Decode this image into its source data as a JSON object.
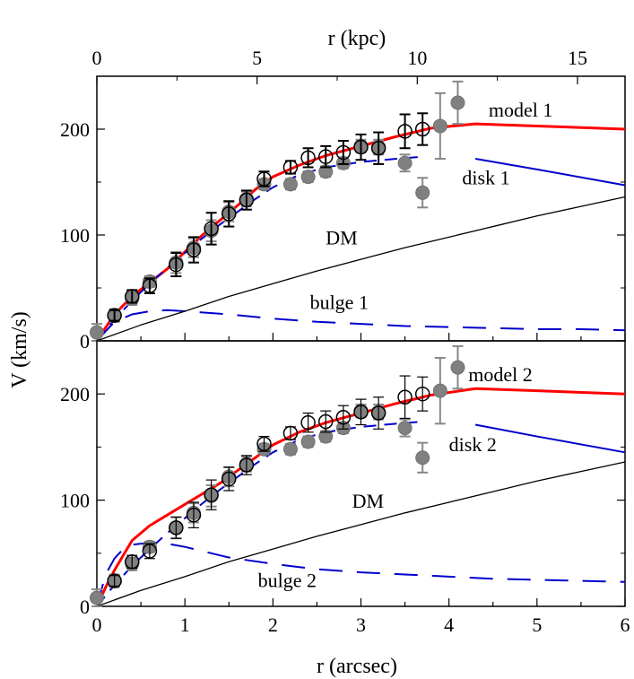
{
  "chart_data": {
    "type": "line",
    "shared": {
      "xlabel": "r (arcsec)",
      "xlabel_top": "r (kpc)",
      "ylabel": "V (km/s)",
      "xlim": [
        0,
        6
      ],
      "ylim": [
        0,
        250
      ],
      "xticks": [
        "0",
        "1",
        "2",
        "3",
        "4",
        "5",
        "6"
      ],
      "yticks": [
        "0",
        "100",
        "200"
      ],
      "top_ticks": [
        {
          "label": "0",
          "arcsec": 0.0
        },
        {
          "label": "5",
          "arcsec": 1.82
        },
        {
          "label": "10",
          "arcsec": 3.64
        },
        {
          "label": "15",
          "arcsec": 5.46
        }
      ]
    },
    "panels": [
      {
        "name": "top",
        "series": [
          {
            "name": "model 1",
            "color": "#ff0000",
            "style": "solid-thick",
            "x": [
              0,
              0.2,
              0.4,
              0.6,
              0.8,
              1.0,
              1.2,
              1.4,
              1.6,
              1.8,
              2.0,
              2.3,
              2.6,
              3.0,
              3.4,
              3.8,
              4.3,
              5.0,
              6.0
            ],
            "y": [
              0,
              25,
              42,
              55,
              68,
              84,
              100,
              114,
              128,
              143,
              155,
              166,
              175,
              184,
              193,
              201,
              205,
              203,
              200
            ]
          },
          {
            "name": "disk 1",
            "color": "#0000cc",
            "style": "dashed",
            "x": [
              0,
              0.2,
              0.4,
              0.6,
              0.8,
              1.0,
              1.2,
              1.4,
              1.6,
              1.8,
              2.0,
              2.3,
              2.6,
              3.0,
              3.4,
              3.7
            ],
            "y": [
              0,
              20,
              38,
              54,
              69,
              83,
              97,
              110,
              122,
              134,
              145,
              157,
              164,
              169,
              172,
              174
            ]
          },
          {
            "name": "disk 1 outer",
            "color": "#0000cc",
            "style": "solid",
            "x": [
              4.3,
              5.0,
              6.0
            ],
            "y": [
              172,
              162,
              147
            ]
          },
          {
            "name": "bulge 1",
            "color": "#0000cc",
            "style": "dashed-long",
            "x": [
              0,
              0.2,
              0.4,
              0.6,
              0.8,
              1.0,
              1.5,
              2.0,
              2.5,
              3.0,
              3.5,
              4.0,
              4.5,
              5.0,
              5.5,
              6.0
            ],
            "y": [
              0,
              18,
              25,
              28,
              29,
              28,
              25,
              21,
              18,
              16,
              14,
              13,
              12,
              11,
              11,
              10
            ]
          },
          {
            "name": "DM",
            "color": "#000000",
            "style": "solid-thin",
            "x": [
              0,
              0.5,
              1.0,
              1.5,
              2.0,
              2.5,
              3.0,
              3.5,
              4.0,
              4.5,
              5.0,
              5.5,
              6.0
            ],
            "y": [
              0,
              15,
              28,
              42,
              54,
              66,
              77,
              88,
              98,
              108,
              118,
              127,
              136
            ]
          }
        ],
        "points_open": [
          {
            "x": 0.2,
            "y": 24,
            "err": 5
          },
          {
            "x": 0.4,
            "y": 42,
            "err": 6
          },
          {
            "x": 0.6,
            "y": 52,
            "err": 7
          },
          {
            "x": 0.9,
            "y": 72,
            "err": 11
          },
          {
            "x": 1.1,
            "y": 86,
            "err": 12
          },
          {
            "x": 1.3,
            "y": 106,
            "err": 15
          },
          {
            "x": 1.5,
            "y": 120,
            "err": 12
          },
          {
            "x": 1.7,
            "y": 133,
            "err": 9
          },
          {
            "x": 1.9,
            "y": 153,
            "err": 7
          },
          {
            "x": 2.2,
            "y": 164,
            "err": 6
          },
          {
            "x": 2.4,
            "y": 173,
            "err": 9
          },
          {
            "x": 2.6,
            "y": 174,
            "err": 10
          },
          {
            "x": 2.8,
            "y": 178,
            "err": 11
          },
          {
            "x": 3.0,
            "y": 183,
            "err": 12
          },
          {
            "x": 3.2,
            "y": 182,
            "err": 15
          },
          {
            "x": 3.5,
            "y": 198,
            "err": 16
          },
          {
            "x": 3.7,
            "y": 200,
            "err": 15
          }
        ],
        "points_filled": [
          {
            "x": 0.0,
            "y": 8,
            "err": 8
          },
          {
            "x": 0.2,
            "y": 24,
            "err": 6
          },
          {
            "x": 0.4,
            "y": 40,
            "err": 6
          },
          {
            "x": 0.6,
            "y": 56,
            "err": 5
          },
          {
            "x": 0.9,
            "y": 74,
            "err": 10
          },
          {
            "x": 1.1,
            "y": 88,
            "err": 9
          },
          {
            "x": 1.3,
            "y": 104,
            "err": 10
          },
          {
            "x": 1.5,
            "y": 122,
            "err": 9
          },
          {
            "x": 1.7,
            "y": 134,
            "err": 7
          },
          {
            "x": 1.9,
            "y": 148,
            "err": 5
          },
          {
            "x": 2.2,
            "y": 148,
            "err": 5
          },
          {
            "x": 2.4,
            "y": 155,
            "err": 5
          },
          {
            "x": 2.6,
            "y": 160,
            "err": 5
          },
          {
            "x": 2.8,
            "y": 168,
            "err": 5
          },
          {
            "x": 3.0,
            "y": 184,
            "err": 6
          },
          {
            "x": 3.2,
            "y": 183,
            "err": 7
          },
          {
            "x": 3.5,
            "y": 168,
            "err": 8
          },
          {
            "x": 3.7,
            "y": 140,
            "err": 14
          },
          {
            "x": 3.9,
            "y": 203,
            "err": 31
          },
          {
            "x": 4.1,
            "y": 225,
            "err": 20
          }
        ],
        "annotations": [
          {
            "text": "model 1",
            "x": 4.45,
            "y": 212
          },
          {
            "text": "disk 1",
            "x": 4.15,
            "y": 148
          },
          {
            "text": "DM",
            "x": 2.6,
            "y": 91
          },
          {
            "text": "bulge 1",
            "x": 2.42,
            "y": 30
          }
        ]
      },
      {
        "name": "bottom",
        "series": [
          {
            "name": "model 2",
            "color": "#ff0000",
            "style": "solid-thick",
            "x": [
              0,
              0.1,
              0.2,
              0.3,
              0.4,
              0.6,
              0.8,
              1.0,
              1.2,
              1.4,
              1.6,
              1.8,
              2.0,
              2.3,
              2.6,
              3.0,
              3.4,
              3.8,
              4.3,
              5.0,
              6.0
            ],
            "y": [
              0,
              18,
              34,
              48,
              62,
              76,
              86,
              96,
              106,
              116,
              128,
              140,
              152,
              164,
              173,
              182,
              191,
              199,
              205,
              203,
              200
            ]
          },
          {
            "name": "disk 2",
            "color": "#0000cc",
            "style": "dashed",
            "x": [
              0,
              0.2,
              0.4,
              0.6,
              0.8,
              1.0,
              1.2,
              1.4,
              1.6,
              1.8,
              2.0,
              2.3,
              2.6,
              3.0,
              3.4,
              3.7
            ],
            "y": [
              0,
              20,
              38,
              54,
              69,
              83,
              97,
              110,
              122,
              134,
              145,
              157,
              164,
              169,
              172,
              174
            ]
          },
          {
            "name": "disk 2 outer",
            "color": "#0000cc",
            "style": "solid",
            "x": [
              4.3,
              5.0,
              6.0
            ],
            "y": [
              171,
              160,
              145
            ]
          },
          {
            "name": "bulge 2",
            "color": "#0000cc",
            "style": "dashed-long",
            "x": [
              0,
              0.1,
              0.2,
              0.3,
              0.4,
              0.6,
              0.8,
              1.0,
              1.5,
              2.0,
              2.5,
              3.0,
              3.5,
              4.0,
              4.5,
              5.0,
              5.5,
              6.0
            ],
            "y": [
              0,
              30,
              45,
              54,
              58,
              60,
              59,
              56,
              46,
              40,
              35,
              32,
              30,
              28,
              26,
              25,
              24,
              23
            ]
          },
          {
            "name": "DM",
            "color": "#000000",
            "style": "solid-thin",
            "x": [
              0,
              0.5,
              1.0,
              1.5,
              2.0,
              2.5,
              3.0,
              3.5,
              4.0,
              4.5,
              5.0,
              5.5,
              6.0
            ],
            "y": [
              0,
              15,
              28,
              42,
              54,
              66,
              77,
              88,
              98,
              108,
              118,
              127,
              136
            ]
          }
        ],
        "points_open": [
          {
            "x": 0.2,
            "y": 24,
            "err": 5
          },
          {
            "x": 0.4,
            "y": 42,
            "err": 6
          },
          {
            "x": 0.6,
            "y": 52,
            "err": 7
          },
          {
            "x": 0.9,
            "y": 74,
            "err": 10
          },
          {
            "x": 1.1,
            "y": 86,
            "err": 12
          },
          {
            "x": 1.3,
            "y": 105,
            "err": 14
          },
          {
            "x": 1.5,
            "y": 120,
            "err": 11
          },
          {
            "x": 1.7,
            "y": 133,
            "err": 9
          },
          {
            "x": 1.9,
            "y": 153,
            "err": 7
          },
          {
            "x": 2.2,
            "y": 163,
            "err": 6
          },
          {
            "x": 2.4,
            "y": 173,
            "err": 9
          },
          {
            "x": 2.6,
            "y": 174,
            "err": 10
          },
          {
            "x": 2.8,
            "y": 178,
            "err": 11
          },
          {
            "x": 3.0,
            "y": 183,
            "err": 12
          },
          {
            "x": 3.2,
            "y": 182,
            "err": 15
          },
          {
            "x": 3.5,
            "y": 197,
            "err": 20
          },
          {
            "x": 3.7,
            "y": 200,
            "err": 16
          }
        ],
        "points_filled": [
          {
            "x": 0.0,
            "y": 8,
            "err": 8
          },
          {
            "x": 0.2,
            "y": 24,
            "err": 6
          },
          {
            "x": 0.4,
            "y": 40,
            "err": 6
          },
          {
            "x": 0.6,
            "y": 56,
            "err": 5
          },
          {
            "x": 0.9,
            "y": 74,
            "err": 10
          },
          {
            "x": 1.1,
            "y": 88,
            "err": 9
          },
          {
            "x": 1.3,
            "y": 104,
            "err": 10
          },
          {
            "x": 1.5,
            "y": 122,
            "err": 9
          },
          {
            "x": 1.7,
            "y": 134,
            "err": 7
          },
          {
            "x": 1.9,
            "y": 148,
            "err": 5
          },
          {
            "x": 2.2,
            "y": 148,
            "err": 5
          },
          {
            "x": 2.4,
            "y": 155,
            "err": 5
          },
          {
            "x": 2.6,
            "y": 160,
            "err": 5
          },
          {
            "x": 2.8,
            "y": 168,
            "err": 5
          },
          {
            "x": 3.0,
            "y": 184,
            "err": 6
          },
          {
            "x": 3.2,
            "y": 183,
            "err": 7
          },
          {
            "x": 3.5,
            "y": 168,
            "err": 8
          },
          {
            "x": 3.7,
            "y": 140,
            "err": 14
          },
          {
            "x": 3.9,
            "y": 203,
            "err": 31
          },
          {
            "x": 4.1,
            "y": 225,
            "err": 20
          }
        ],
        "annotations": [
          {
            "text": "model 2",
            "x": 4.22,
            "y": 212
          },
          {
            "text": "disk 2",
            "x": 4.0,
            "y": 146
          },
          {
            "text": "DM",
            "x": 2.9,
            "y": 93
          },
          {
            "text": "bulge 2",
            "x": 1.83,
            "y": 18
          }
        ]
      }
    ]
  }
}
